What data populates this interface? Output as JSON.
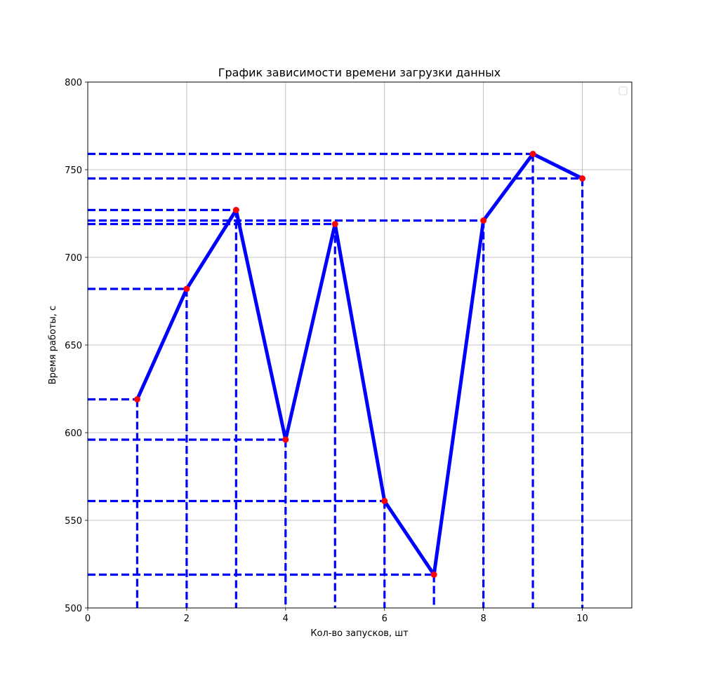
{
  "chart_data": {
    "type": "line",
    "title": "График зависимости времени загрузки данных",
    "xlabel": "Кол-во запусков, шт",
    "ylabel": "Время работы, с",
    "xlim": [
      0,
      11
    ],
    "ylim": [
      500,
      800
    ],
    "xticks": [
      0,
      2,
      4,
      6,
      8,
      10
    ],
    "yticks": [
      500,
      550,
      600,
      650,
      700,
      750,
      800
    ],
    "grid": true,
    "legend": "top-right (empty)",
    "x": [
      1,
      2,
      3,
      4,
      5,
      6,
      7,
      8,
      9,
      10
    ],
    "series": [
      {
        "values": [
          619,
          682,
          727,
          596,
          719,
          561,
          519,
          721,
          759,
          745
        ],
        "line_color": "#0000ff",
        "marker_color": "#ff0000",
        "drop_lines": "dashed, to both axes"
      }
    ]
  }
}
